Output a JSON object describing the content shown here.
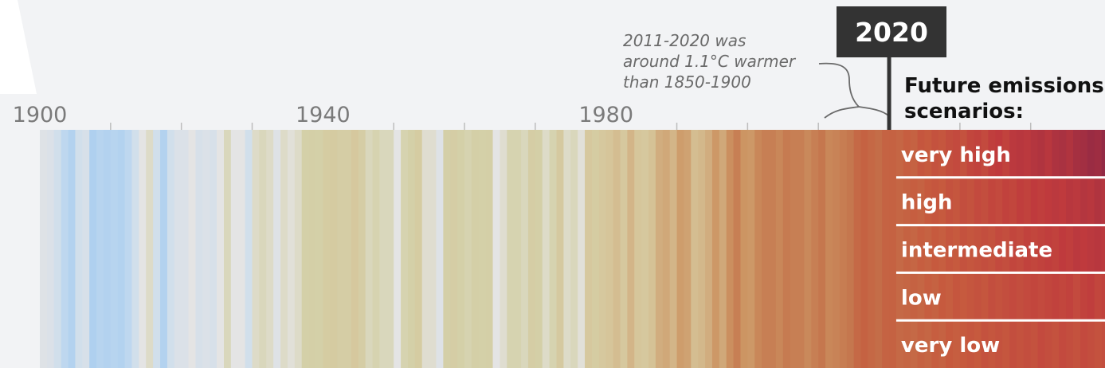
{
  "chart_data": {
    "type": "stripes",
    "xlim": [
      1900,
      2050.5
    ],
    "xticks": [
      1900,
      1940,
      1980
    ],
    "xminorticks": [
      1910,
      1920,
      1930,
      1950,
      1960,
      1970,
      1990,
      2000,
      2010,
      2030,
      2040
    ],
    "x": [
      1900,
      1901,
      1902,
      1903,
      1904,
      1905,
      1906,
      1907,
      1908,
      1909,
      1910,
      1911,
      1912,
      1913,
      1914,
      1915,
      1916,
      1917,
      1918,
      1919,
      1920,
      1921,
      1922,
      1923,
      1924,
      1925,
      1926,
      1927,
      1928,
      1929,
      1930,
      1931,
      1932,
      1933,
      1934,
      1935,
      1936,
      1937,
      1938,
      1939,
      1940,
      1941,
      1942,
      1943,
      1944,
      1945,
      1946,
      1947,
      1948,
      1949,
      1950,
      1951,
      1952,
      1953,
      1954,
      1955,
      1956,
      1957,
      1958,
      1959,
      1960,
      1961,
      1962,
      1963,
      1964,
      1965,
      1966,
      1967,
      1968,
      1969,
      1970,
      1971,
      1972,
      1973,
      1974,
      1975,
      1976,
      1977,
      1978,
      1979,
      1980,
      1981,
      1982,
      1983,
      1984,
      1985,
      1986,
      1987,
      1988,
      1989,
      1990,
      1991,
      1992,
      1993,
      1994,
      1995,
      1996,
      1997,
      1998,
      1999,
      2000,
      2001,
      2002,
      2003,
      2004,
      2005,
      2006,
      2007,
      2008,
      2009,
      2010,
      2011,
      2012,
      2013,
      2014,
      2015,
      2016,
      2017,
      2018,
      2019,
      2020
    ],
    "values": [
      0.12,
      0.1,
      0.05,
      -0.05,
      -0.1,
      0.05,
      0.08,
      -0.12,
      -0.08,
      -0.1,
      -0.08,
      -0.1,
      -0.05,
      0.05,
      0.15,
      0.22,
      0.05,
      -0.1,
      0.05,
      0.1,
      0.1,
      0.15,
      0.08,
      0.1,
      0.08,
      0.15,
      0.25,
      0.15,
      0.15,
      0.05,
      0.22,
      0.25,
      0.22,
      0.12,
      0.22,
      0.18,
      0.22,
      0.3,
      0.32,
      0.3,
      0.38,
      0.4,
      0.35,
      0.35,
      0.45,
      0.35,
      0.25,
      0.28,
      0.25,
      0.25,
      0.15,
      0.28,
      0.3,
      0.38,
      0.2,
      0.2,
      0.12,
      0.32,
      0.35,
      0.3,
      0.28,
      0.32,
      0.3,
      0.32,
      0.15,
      0.2,
      0.28,
      0.28,
      0.25,
      0.35,
      0.32,
      0.22,
      0.28,
      0.42,
      0.22,
      0.25,
      0.18,
      0.45,
      0.38,
      0.45,
      0.5,
      0.55,
      0.45,
      0.6,
      0.48,
      0.45,
      0.52,
      0.65,
      0.68,
      0.6,
      0.75,
      0.72,
      0.55,
      0.58,
      0.65,
      0.78,
      0.68,
      0.85,
      0.98,
      0.8,
      0.78,
      0.92,
      0.98,
      0.98,
      0.92,
      1.02,
      0.98,
      0.98,
      0.9,
      0.98,
      1.05,
      0.92,
      0.95,
      1.0,
      1.05,
      1.2,
      1.3,
      1.22,
      1.15,
      1.28,
      1.3
    ],
    "marker": 2020,
    "annotation": [
      "2011-2020 was",
      "around 1.1°C warmer",
      "than 1850-1900"
    ],
    "scenario_title": [
      "Future emissions",
      "scenarios:"
    ],
    "future_x": [
      2021,
      2022,
      2023,
      2024,
      2025,
      2026,
      2027,
      2028,
      2029,
      2030,
      2031,
      2032,
      2033,
      2034,
      2035,
      2036,
      2037,
      2038,
      2039,
      2040,
      2041,
      2042,
      2043,
      2044,
      2045,
      2046,
      2047,
      2048,
      2049,
      2050
    ],
    "scenarios": [
      {
        "name": "very high",
        "values": [
          1.25,
          1.35,
          1.3,
          1.45,
          1.4,
          1.5,
          1.45,
          1.55,
          1.6,
          1.5,
          1.65,
          1.7,
          1.6,
          1.75,
          1.8,
          1.7,
          1.85,
          1.9,
          1.85,
          1.95,
          2.0,
          1.9,
          2.05,
          2.1,
          2.0,
          2.15,
          2.2,
          2.3,
          2.25,
          2.4
        ]
      },
      {
        "name": "high",
        "values": [
          1.25,
          1.3,
          1.35,
          1.3,
          1.4,
          1.45,
          1.4,
          1.5,
          1.45,
          1.55,
          1.5,
          1.6,
          1.55,
          1.65,
          1.6,
          1.7,
          1.65,
          1.75,
          1.7,
          1.8,
          1.75,
          1.8,
          1.85,
          1.8,
          1.9,
          1.85,
          1.95,
          1.9,
          2.0,
          1.95
        ]
      },
      {
        "name": "intermediate",
        "values": [
          1.2,
          1.3,
          1.25,
          1.35,
          1.3,
          1.4,
          1.35,
          1.45,
          1.4,
          1.5,
          1.45,
          1.5,
          1.55,
          1.5,
          1.6,
          1.55,
          1.65,
          1.6,
          1.7,
          1.65,
          1.7,
          1.75,
          1.7,
          1.8,
          1.75,
          1.85,
          1.8,
          1.85,
          1.9,
          1.85
        ]
      },
      {
        "name": "low",
        "values": [
          1.2,
          1.25,
          1.3,
          1.25,
          1.35,
          1.3,
          1.4,
          1.35,
          1.45,
          1.4,
          1.45,
          1.5,
          1.45,
          1.55,
          1.5,
          1.55,
          1.6,
          1.55,
          1.6,
          1.65,
          1.6,
          1.65,
          1.7,
          1.65,
          1.7,
          1.6,
          1.7,
          1.75,
          1.65,
          1.7
        ]
      },
      {
        "name": "very low",
        "values": [
          1.2,
          1.25,
          1.2,
          1.3,
          1.25,
          1.35,
          1.3,
          1.4,
          1.35,
          1.4,
          1.45,
          1.4,
          1.5,
          1.45,
          1.5,
          1.45,
          1.55,
          1.5,
          1.55,
          1.5,
          1.6,
          1.55,
          1.5,
          1.6,
          1.55,
          1.5,
          1.6,
          1.55,
          1.5,
          1.55
        ]
      }
    ],
    "color_scale": {
      "domain": [
        -0.15,
        0.0,
        0.15,
        0.3,
        0.5,
        0.8,
        1.1,
        1.4,
        1.8,
        2.4
      ],
      "colors": [
        "#a9cdef",
        "#c8dcef",
        "#e4e4e4",
        "#d4d0a8",
        "#d6c59a",
        "#cc9563",
        "#c4714a",
        "#c65a3e",
        "#bf3a3d",
        "#932944"
      ]
    }
  }
}
